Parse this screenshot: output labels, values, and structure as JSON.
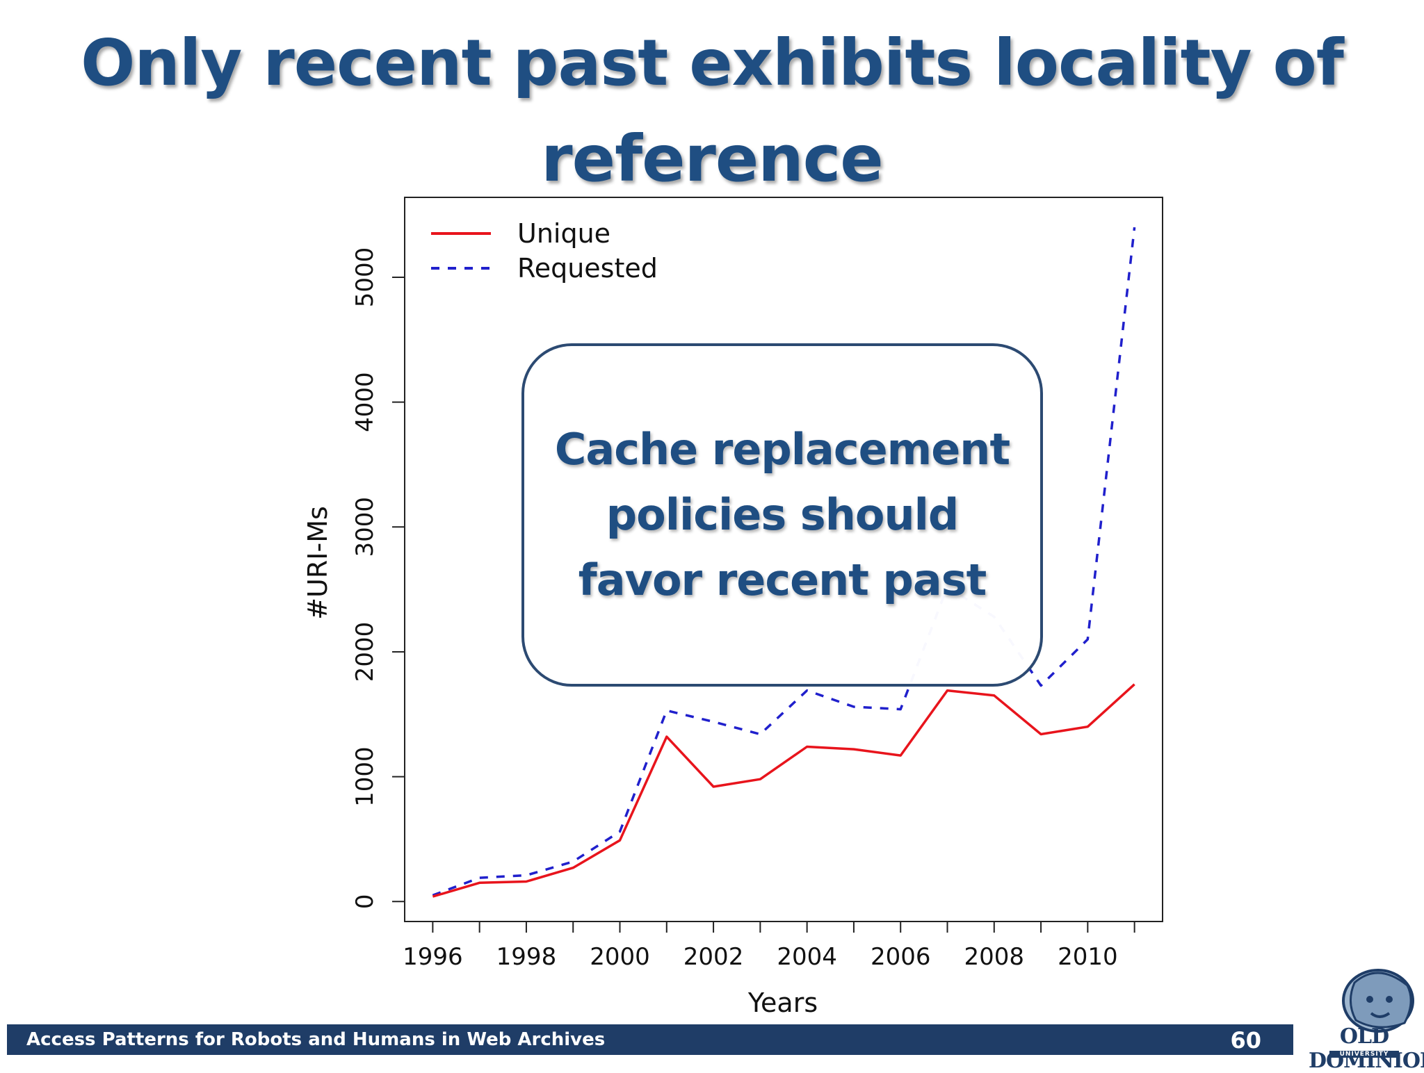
{
  "slide": {
    "title": "Only recent past exhibits locality of reference",
    "callout": "Cache replacement policies should favor recent past",
    "footer_text": "Access Patterns for Robots and Humans in Web Archives",
    "page_number": "60",
    "logo_line1": "OLD DOMINION",
    "logo_line2": "UNIVERSITY"
  },
  "colors": {
    "title": "#1f4e82",
    "footer": "#1f3d67",
    "unique": "#e8141c",
    "requested": "#2020cc"
  },
  "chart_data": {
    "type": "line",
    "title": "",
    "xlabel": "Years",
    "ylabel": "#URI-Ms",
    "x": [
      1996,
      1997,
      1998,
      1999,
      2000,
      2001,
      2002,
      2003,
      2004,
      2005,
      2006,
      2007,
      2008,
      2009,
      2010,
      2011
    ],
    "xticks": [
      1996,
      1998,
      2000,
      2002,
      2004,
      2006,
      2008,
      2010
    ],
    "yticks": [
      0,
      1000,
      2000,
      3000,
      4000,
      5000
    ],
    "xlim": [
      1995.4,
      2011.6
    ],
    "ylim": [
      -160,
      5640
    ],
    "legend_position": "top-left",
    "grid": false,
    "series": [
      {
        "name": "Unique",
        "style": "solid",
        "values": [
          40,
          150,
          160,
          270,
          490,
          1320,
          920,
          980,
          1240,
          1220,
          1170,
          1690,
          1650,
          1340,
          1400,
          1740
        ]
      },
      {
        "name": "Requested",
        "style": "dashed",
        "values": [
          50,
          190,
          210,
          320,
          560,
          1530,
          1440,
          1340,
          1690,
          1560,
          1540,
          2520,
          2280,
          1730,
          2100,
          5400
        ]
      }
    ]
  }
}
